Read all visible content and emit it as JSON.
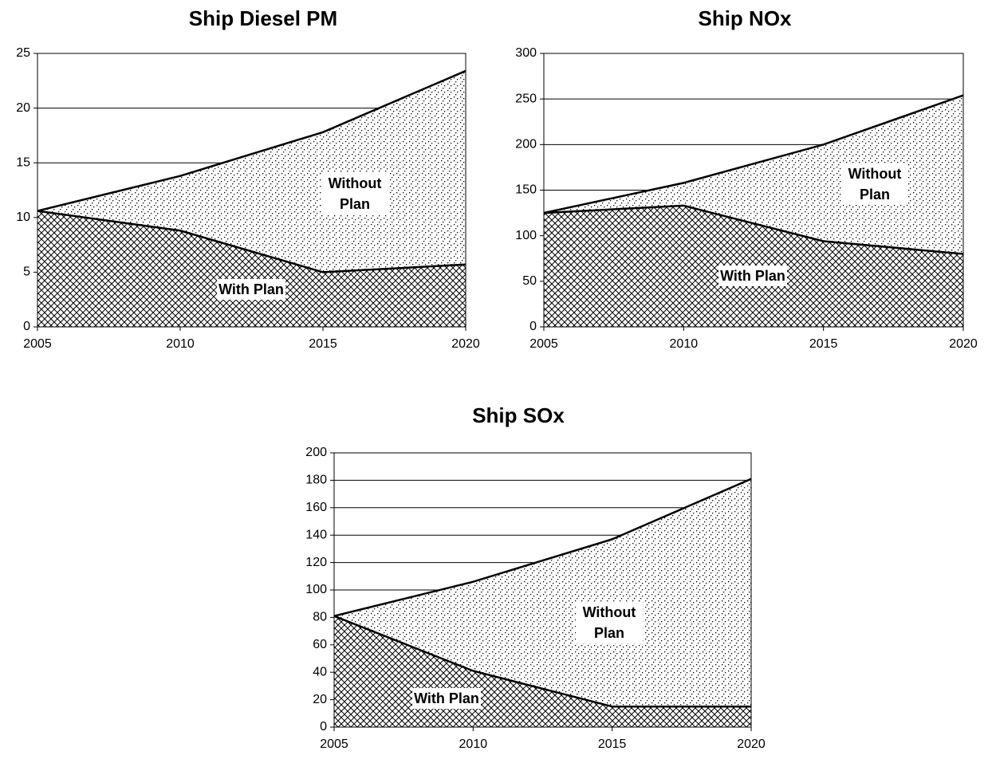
{
  "chart_data": [
    {
      "type": "area",
      "title": "Ship Diesel PM",
      "x": [
        2005,
        2010,
        2015,
        2020
      ],
      "series": [
        {
          "name": "Without Plan",
          "color": "#000000",
          "values": [
            10.6,
            13.8,
            17.8,
            23.4
          ]
        },
        {
          "name": "With Plan",
          "color": "#000000",
          "values": [
            10.6,
            8.8,
            5.0,
            5.7
          ]
        }
      ],
      "xlim": [
        2005,
        2020
      ],
      "xticks": [
        2005,
        2010,
        2015,
        2020
      ],
      "ylim": [
        0,
        25
      ],
      "yticks": [
        0,
        5,
        10,
        15,
        20,
        25
      ],
      "grid": true
    },
    {
      "type": "area",
      "title": "Ship NOx",
      "x": [
        2005,
        2010,
        2015,
        2020
      ],
      "series": [
        {
          "name": "Without Plan",
          "color": "#000000",
          "values": [
            125,
            158,
            200,
            254
          ]
        },
        {
          "name": "With Plan",
          "color": "#000000",
          "values": [
            125,
            133,
            94,
            80
          ]
        }
      ],
      "xlim": [
        2005,
        2020
      ],
      "xticks": [
        2005,
        2010,
        2015,
        2020
      ],
      "ylim": [
        0,
        300
      ],
      "yticks": [
        0,
        50,
        100,
        150,
        200,
        250,
        300
      ],
      "grid": true
    },
    {
      "type": "area",
      "title": "Ship SOx",
      "x": [
        2005,
        2010,
        2015,
        2020
      ],
      "series": [
        {
          "name": "Without Plan",
          "color": "#000000",
          "values": [
            81,
            106,
            137,
            181
          ]
        },
        {
          "name": "With Plan",
          "color": "#000000",
          "values": [
            81,
            41,
            15,
            15
          ]
        }
      ],
      "xlim": [
        2005,
        2020
      ],
      "xticks": [
        2005,
        2010,
        2015,
        2020
      ],
      "ylim": [
        0,
        200
      ],
      "yticks": [
        0,
        20,
        40,
        60,
        80,
        100,
        120,
        140,
        160,
        180,
        200
      ],
      "grid": true
    }
  ]
}
